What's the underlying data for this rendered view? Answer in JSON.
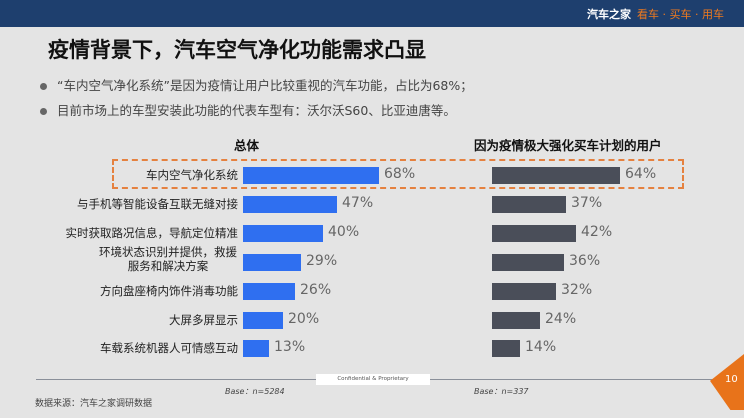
{
  "header": {
    "brand": "汽车之家",
    "slogan": "看车 · 买车 · 用车",
    "color": "#1e3f6e"
  },
  "title": "疫情背景下，汽车空气净化功能需求凸显",
  "bullets": [
    "“车内空气净化系统”是因为疫情让用户比较重视的汽车功能，占比为68%；",
    "目前市场上的车型安装此功能的代表车型有：沃尔沃S60、比亚迪唐等。"
  ],
  "chart_data": {
    "type": "bar",
    "orientation": "horizontal",
    "categories": [
      "车内空气净化系统",
      "与手机等智能设备互联无缝对接",
      "实时获取路况信息，导航定位精准",
      "环境状态识别并提供，救援服务和解决方案",
      "方向盘座椅内饰件消毒功能",
      "大屏多屏显示",
      "车载系统机器人可情感互动"
    ],
    "series": [
      {
        "name": "总体",
        "values": [
          68,
          47,
          40,
          29,
          26,
          20,
          13
        ],
        "color": "#2f6ff0",
        "base": "Base：n=5284"
      },
      {
        "name": "因为疫情极大强化买车计划的用户",
        "values": [
          64,
          37,
          42,
          36,
          32,
          24,
          14
        ],
        "color": "#4a4e59",
        "base": "Base：n=337"
      }
    ],
    "unit": "%",
    "highlighted_category": "车内空气净化系统"
  },
  "footer": {
    "confidential": "Confidential & Proprietary",
    "source": "数据来源：汽车之家调研数据",
    "page": "10"
  }
}
